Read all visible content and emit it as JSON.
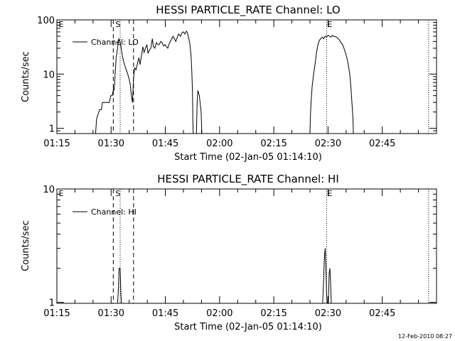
{
  "footer": {
    "timestamp": "12-Feb-2010 08:27"
  },
  "chart_data": [
    {
      "type": "line",
      "title": "HESSI PARTICLE_RATE Channel: LO",
      "xlabel": "Start Time (02-Jan-05 01:14:10)",
      "ylabel": "Counts/sec",
      "x_unit": "minutes",
      "xlim": [
        75,
        180
      ],
      "xticks": [
        75,
        90,
        105,
        120,
        135,
        150,
        165
      ],
      "xticklabels": [
        "01:15",
        "01:30",
        "01:45",
        "02:00",
        "02:15",
        "02:30",
        "02:45"
      ],
      "yscale": "log",
      "ylim": [
        0.8,
        100
      ],
      "yticks": [
        1,
        10,
        100
      ],
      "yticklabels": [
        "1",
        "10",
        "100"
      ],
      "grid": false,
      "legend": "top-left",
      "series": [
        {
          "name": "Channel: LO",
          "segments": [
            [
              [
                85.7,
                0.8
              ],
              [
                86,
                1.5
              ],
              [
                86.8,
                2.2
              ],
              [
                87.3,
                2.2
              ],
              [
                87.6,
                3
              ],
              [
                89.5,
                3
              ],
              [
                89.9,
                4
              ],
              [
                90.3,
                4
              ],
              [
                90.7,
                5.5
              ],
              [
                90.8,
                5
              ],
              [
                90.9,
                6
              ],
              [
                91,
                7
              ],
              [
                91.1,
                10
              ],
              [
                91.4,
                20
              ],
              [
                91.8,
                30
              ],
              [
                92.1,
                45
              ],
              [
                92.5,
                40
              ],
              [
                92.8,
                30
              ],
              [
                93.2,
                20
              ],
              [
                93.7,
                15
              ],
              [
                94.2,
                12
              ],
              [
                94.6,
                10
              ],
              [
                95,
                8
              ],
              [
                95.3,
                6.5
              ],
              [
                95.6,
                4
              ],
              [
                95.9,
                3
              ],
              [
                96.2,
                8
              ],
              [
                96.5,
                13
              ],
              [
                96.9,
                12
              ],
              [
                97.3,
                16
              ],
              [
                97.7,
                20
              ],
              [
                98,
                15
              ],
              [
                98.4,
                22
              ],
              [
                98.8,
                32
              ],
              [
                99.1,
                25
              ],
              [
                99.5,
                30
              ],
              [
                99.9,
                35
              ],
              [
                100.2,
                24
              ],
              [
                100.6,
                28
              ],
              [
                101,
                30
              ],
              [
                101.4,
                45
              ],
              [
                101.7,
                32
              ],
              [
                102.1,
                30
              ],
              [
                102.5,
                38
              ],
              [
                102.9,
                35
              ],
              [
                103.3,
                35
              ],
              [
                103.7,
                40
              ],
              [
                104.1,
                38
              ],
              [
                104.5,
                33
              ],
              [
                104.9,
                35
              ],
              [
                105.3,
                32
              ],
              [
                105.7,
                30
              ],
              [
                106,
                36
              ],
              [
                106.4,
                40
              ],
              [
                106.8,
                45
              ],
              [
                107.1,
                50
              ],
              [
                107.5,
                45
              ],
              [
                107.9,
                40
              ],
              [
                108.3,
                48
              ],
              [
                108.7,
                55
              ],
              [
                109.2,
                50
              ],
              [
                109.6,
                58
              ],
              [
                110,
                60
              ],
              [
                110.4,
                55
              ],
              [
                110.8,
                62
              ],
              [
                111.1,
                58
              ],
              [
                111.5,
                45
              ],
              [
                111.8,
                35
              ],
              [
                112.1,
                22
              ],
              [
                112.3,
                12
              ],
              [
                112.5,
                5
              ],
              [
                112.6,
                1.6
              ],
              [
                112.7,
                0.8
              ]
            ],
            [
              [
                113.6,
                0.8
              ],
              [
                113.8,
                3
              ],
              [
                114,
                5
              ],
              [
                114.4,
                4
              ],
              [
                114.9,
                2
              ],
              [
                115.1,
                0.8
              ]
            ],
            [
              [
                145,
                0.8
              ],
              [
                145.1,
                1.5
              ],
              [
                145.3,
                3
              ],
              [
                145.6,
                6
              ],
              [
                146,
                10
              ],
              [
                146.4,
                15
              ],
              [
                146.8,
                25
              ],
              [
                147.2,
                35
              ],
              [
                147.6,
                42
              ],
              [
                148,
                45
              ],
              [
                148.4,
                48
              ],
              [
                148.8,
                45
              ],
              [
                149.2,
                50
              ],
              [
                149.6,
                48
              ],
              [
                150,
                52
              ],
              [
                150.4,
                50
              ],
              [
                150.8,
                48
              ],
              [
                151.2,
                52
              ],
              [
                151.6,
                50
              ],
              [
                152,
                49
              ],
              [
                152.4,
                48
              ],
              [
                152.8,
                45
              ],
              [
                153.2,
                42
              ],
              [
                153.6,
                38
              ],
              [
                154,
                35
              ],
              [
                154.4,
                30
              ],
              [
                154.8,
                25
              ],
              [
                155.2,
                20
              ],
              [
                155.6,
                15
              ],
              [
                156,
                10
              ],
              [
                156.3,
                6
              ],
              [
                156.6,
                3
              ],
              [
                156.9,
                1.5
              ],
              [
                157,
                0.8
              ]
            ]
          ]
        }
      ],
      "dashed_vlines": [
        90.6,
        96.2
      ],
      "dotted_vlines": [
        92.5,
        149.6,
        177.8
      ],
      "markers": [
        {
          "label": "E",
          "x": 75.5
        },
        {
          "label": "S",
          "x": 91.2
        },
        {
          "label": "E",
          "x": 149.8
        }
      ]
    },
    {
      "type": "line",
      "title": "HESSI PARTICLE_RATE Channel: HI",
      "xlabel": "Start Time (02-Jan-05 01:14:10)",
      "ylabel": "Counts/sec",
      "x_unit": "minutes",
      "xlim": [
        75,
        180
      ],
      "xticks": [
        75,
        90,
        105,
        120,
        135,
        150,
        165
      ],
      "xticklabels": [
        "01:15",
        "01:30",
        "01:45",
        "02:00",
        "02:15",
        "02:30",
        "02:45"
      ],
      "yscale": "log",
      "ylim": [
        0.98,
        10
      ],
      "yticks": [
        1,
        10
      ],
      "yticklabels": [
        "1",
        "10"
      ],
      "grid": false,
      "legend": "top-left",
      "series": [
        {
          "name": "Channel: HI",
          "segments": [
            [
              [
                91.8,
                0.98
              ],
              [
                92,
                1.3
              ],
              [
                92.2,
                2
              ],
              [
                92.5,
                2
              ],
              [
                92.7,
                1.2
              ],
              [
                92.9,
                0.98
              ]
            ],
            [
              [
                148.5,
                0.98
              ],
              [
                148.8,
                1.6
              ],
              [
                149,
                2.5
              ],
              [
                149.2,
                3
              ],
              [
                149.4,
                2
              ],
              [
                149.6,
                1.2
              ],
              [
                149.8,
                0.98
              ]
            ],
            [
              [
                150.1,
                0.98
              ],
              [
                150.3,
                1.8
              ],
              [
                150.5,
                2
              ],
              [
                150.7,
                1.5
              ],
              [
                150.9,
                0.98
              ]
            ]
          ]
        }
      ],
      "dashed_vlines": [
        90.6,
        96.2
      ],
      "dotted_vlines": [
        92.5,
        149.6,
        177.8
      ],
      "markers": [
        {
          "label": "E",
          "x": 75.5
        },
        {
          "label": "S",
          "x": 91.2
        },
        {
          "label": "E",
          "x": 149.8
        }
      ]
    }
  ]
}
